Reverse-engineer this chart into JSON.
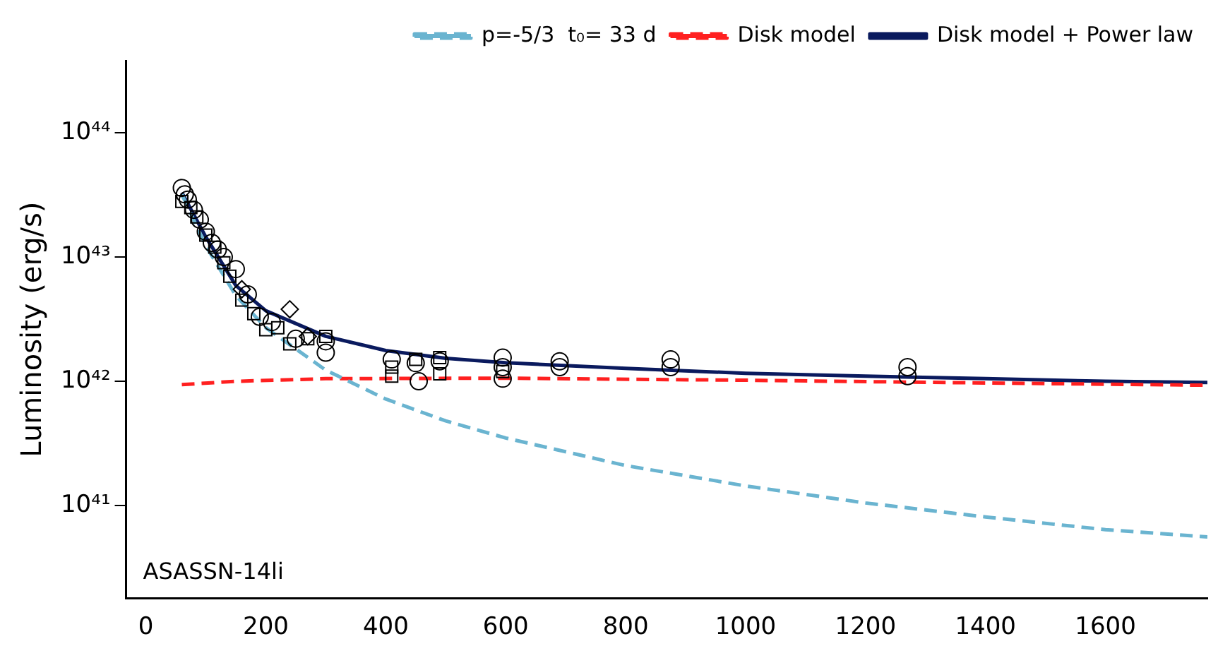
{
  "chart_data": {
    "type": "line",
    "ylabel": "Luminosity (erg/s)",
    "log": "y",
    "xlim": [
      -33,
      1770
    ],
    "xticks": [
      0,
      200,
      400,
      600,
      800,
      1000,
      1200,
      1400,
      1600
    ],
    "ylim": [
      1.8e+40,
      3.8e+44
    ],
    "yticks": [
      {
        "value": 1e+41,
        "label": "10⁴¹"
      },
      {
        "value": 1e+42,
        "label": "10⁴²"
      },
      {
        "value": 1e+43,
        "label": "10⁴³"
      },
      {
        "value": 1e+44,
        "label": "10⁴⁴"
      }
    ],
    "grid": false,
    "legend": "top right",
    "annotations": [
      "ASASSN-14li"
    ],
    "series": [
      {
        "name": "p=-5/3  t₀= 33 d",
        "color": "#6ab4d0",
        "line_style": "dashed",
        "marker": "none",
        "x": [
          60,
          100,
          150,
          200,
          300,
          400,
          500,
          600,
          800,
          1000,
          1200,
          1400,
          1600,
          1770
        ],
        "values": [
          3.2e+43,
          1.23e+43,
          4.9e+42,
          2.7e+42,
          1.23e+42,
          7.2e+41,
          4.8e+41,
          3.5e+41,
          2.1e+41,
          1.44e+41,
          1.05e+41,
          8.1e+40,
          6.4e+40,
          5.6e+40
        ]
      },
      {
        "name": "Disk model",
        "color": "#ff2020",
        "line_style": "dashed",
        "marker": "none",
        "x": [
          60,
          150,
          300,
          600,
          1000,
          1400,
          1770
        ],
        "values": [
          9.4e+41,
          1e+42,
          1.05e+42,
          1.06e+42,
          1.02e+42,
          9.7e+41,
          9.3e+41
        ]
      },
      {
        "name": "Disk model + Power law",
        "color": "#0a1a5e",
        "line_style": "solid",
        "marker": "none",
        "x": [
          60,
          100,
          150,
          200,
          300,
          400,
          500,
          600,
          800,
          1000,
          1200,
          1400,
          1600,
          1770
        ],
        "values": [
          3.3e+43,
          1.45e+43,
          5.9e+42,
          3.7e+42,
          2.3e+42,
          1.77e+42,
          1.53e+42,
          1.41e+42,
          1.27e+42,
          1.16e+42,
          1.1e+42,
          1.05e+42,
          1e+42,
          9.8e+41
        ]
      },
      {
        "type": "scatter",
        "color": "#000000",
        "marker": "circle",
        "x": [
          60,
          65,
          70,
          80,
          90,
          100,
          110,
          120,
          130,
          150,
          170,
          190,
          210,
          250,
          300,
          300,
          410,
          450,
          455,
          490,
          595,
          595,
          595,
          690,
          690,
          875,
          875,
          1270,
          1270
        ],
        "values": [
          3.6e+43,
          3.2e+43,
          2.9e+43,
          2.4e+43,
          2e+43,
          1.6e+43,
          1.3e+43,
          1.15e+43,
          1e+43,
          8e+42,
          5e+42,
          3.3e+42,
          3e+42,
          2.2e+42,
          2.1e+42,
          1.7e+42,
          1.5e+42,
          1.4e+42,
          1e+42,
          1.45e+42,
          1.55e+42,
          1.3e+42,
          1.05e+42,
          1.45e+42,
          1.3e+42,
          1.5e+42,
          1.3e+42,
          1.3e+42,
          1.1e+42
        ]
      },
      {
        "type": "scatter",
        "color": "#000000",
        "marker": "square",
        "x": [
          60,
          75,
          85,
          100,
          115,
          130,
          140,
          160,
          180,
          200,
          220,
          240,
          270,
          300,
          410,
          410,
          450,
          490,
          490,
          595
        ],
        "values": [
          2.8e+43,
          2.5e+43,
          2.1e+43,
          1.5e+43,
          1.2e+43,
          9e+42,
          7e+42,
          4.5e+42,
          3.5e+42,
          2.6e+42,
          2.7e+42,
          2e+42,
          2.2e+42,
          2.3e+42,
          1.3e+42,
          1.1e+42,
          1.5e+42,
          1.55e+42,
          1.15e+42,
          1.2e+42
        ]
      },
      {
        "type": "scatter",
        "color": "#000000",
        "marker": "diamond",
        "x": [
          160,
          240,
          270
        ],
        "values": [
          5.5e+42,
          3.8e+42,
          2.3e+42
        ]
      }
    ]
  }
}
